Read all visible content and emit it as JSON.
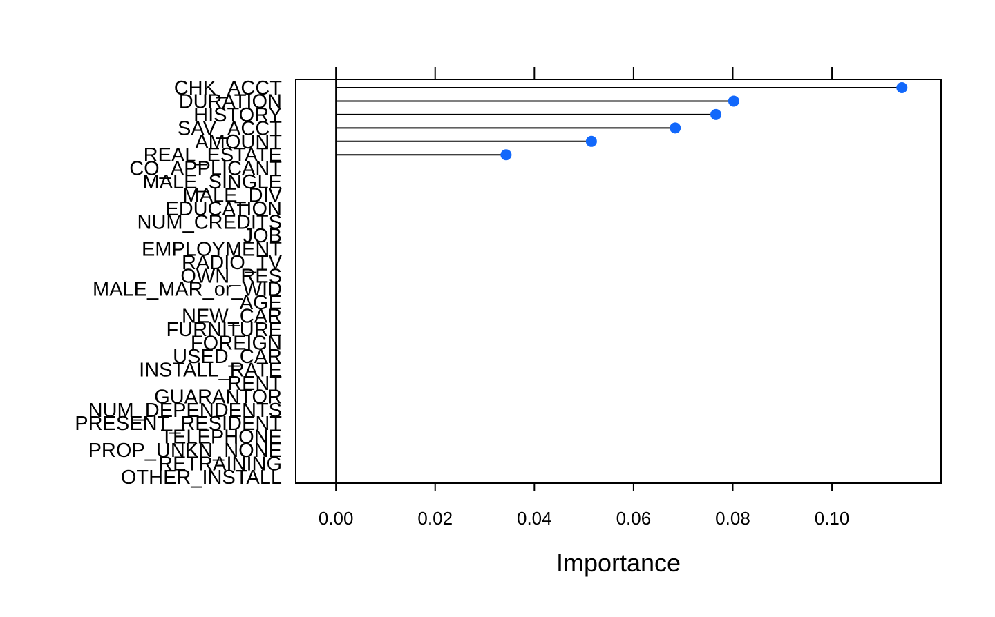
{
  "chart_data": {
    "type": "dotplot",
    "x_label": "Importance",
    "categories": [
      "CHK_ACCT",
      "DURATION",
      "HISTORY",
      "SAV_ACCT",
      "AMOUNT",
      "REAL_ESTATE",
      "CO_APPLICANT",
      "MALE_SINGLE",
      "MALE_DIV",
      "EDUCATION",
      "NUM_CREDITS",
      "JOB",
      "EMPLOYMENT",
      "RADIO_TV",
      "OWN_RES",
      "MALE_MAR_or_WID",
      "AGE",
      "NEW_CAR",
      "FURNITURE",
      "FOREIGN",
      "USED_CAR",
      "INSTALL_RATE",
      "RENT",
      "GUARANTOR",
      "NUM_DEPENDENTS",
      "PRESENT_RESIDENT",
      "TELEPHONE",
      "PROP_UNKN_NONE",
      "RETRAINING",
      "OTHER_INSTALL"
    ],
    "values": [
      0.1141,
      0.0802,
      0.0766,
      0.0684,
      0.0515,
      0.0343,
      null,
      null,
      null,
      null,
      null,
      null,
      null,
      null,
      null,
      null,
      null,
      null,
      null,
      null,
      null,
      null,
      null,
      null,
      null,
      null,
      null,
      null,
      null,
      null
    ],
    "color": "#1268fb",
    "xlim": [
      -0.0081,
      0.122
    ],
    "xticks": [
      {
        "value": 0,
        "label": "0.00"
      },
      {
        "value": 0.02,
        "label": "0.02"
      },
      {
        "value": 0.04,
        "label": "0.04"
      },
      {
        "value": 0.06,
        "label": "0.06"
      },
      {
        "value": 0.08,
        "label": "0.08"
      },
      {
        "value": 0.1,
        "label": "0.10"
      }
    ]
  }
}
